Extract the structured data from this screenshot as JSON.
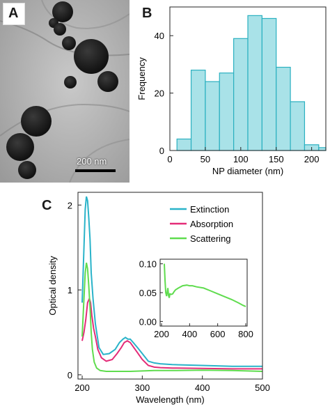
{
  "panels": {
    "a": {
      "letter": "A",
      "scale_bar_label": "200 nm"
    },
    "b": {
      "letter": "B"
    },
    "c": {
      "letter": "C"
    }
  },
  "chart_data": [
    {
      "id": "B",
      "type": "bar",
      "xlabel": "NP diameter (nm)",
      "ylabel": "Frequency",
      "xlim": [
        0,
        220
      ],
      "ylim": [
        0,
        50
      ],
      "xticks": [
        0,
        50,
        100,
        150,
        200
      ],
      "yticks": [
        0,
        20,
        40
      ],
      "bin_edges": [
        10,
        30,
        50,
        70,
        90,
        110,
        130,
        150,
        170,
        190,
        210,
        220
      ],
      "values": [
        4,
        28,
        24,
        27,
        39,
        47,
        46,
        29,
        17,
        2,
        1
      ],
      "color": "#a9e2e8",
      "edge_color": "#2ab0c0"
    },
    {
      "id": "C",
      "type": "line",
      "xlabel": "Wavelength (nm)",
      "ylabel": "Optical density",
      "xlim": [
        193,
        500
      ],
      "ylim": [
        -0.05,
        2.15
      ],
      "xticks": [
        200,
        300,
        400,
        500
      ],
      "yticks": [
        0,
        1,
        2
      ],
      "legend_position": "top-right",
      "series": [
        {
          "name": "Extinction",
          "color": "#29b3c9",
          "x": [
            200,
            203,
            205,
            207,
            209,
            211,
            213,
            215,
            218,
            222,
            228,
            235,
            245,
            255,
            262,
            268,
            272,
            276,
            280,
            285,
            292,
            300,
            310,
            320,
            330,
            350,
            400,
            450,
            500
          ],
          "y": [
            0.85,
            1.5,
            1.95,
            2.1,
            2.05,
            1.85,
            1.6,
            1.2,
            0.9,
            0.6,
            0.32,
            0.24,
            0.25,
            0.3,
            0.38,
            0.42,
            0.44,
            0.42,
            0.42,
            0.38,
            0.32,
            0.25,
            0.16,
            0.14,
            0.13,
            0.12,
            0.11,
            0.1,
            0.1
          ]
        },
        {
          "name": "Absorption",
          "color": "#e42c78",
          "x": [
            200,
            203,
            206,
            209,
            212,
            214,
            216,
            219,
            222,
            226,
            232,
            240,
            250,
            258,
            265,
            270,
            275,
            280,
            285,
            292,
            300,
            310,
            320,
            330,
            350,
            400,
            450,
            500
          ],
          "y": [
            0.4,
            0.5,
            0.65,
            0.85,
            0.9,
            0.85,
            0.7,
            0.55,
            0.45,
            0.3,
            0.2,
            0.16,
            0.18,
            0.25,
            0.32,
            0.38,
            0.4,
            0.38,
            0.33,
            0.26,
            0.18,
            0.11,
            0.09,
            0.085,
            0.08,
            0.075,
            0.07,
            0.07
          ]
        },
        {
          "name": "Scattering",
          "color": "#5fdc4e",
          "x": [
            200,
            203,
            205,
            207,
            209,
            211,
            213,
            215,
            217,
            220,
            224,
            230,
            240,
            260,
            280,
            300,
            320,
            350,
            400,
            450,
            500
          ],
          "y": [
            0.45,
            0.9,
            1.2,
            1.32,
            1.25,
            1.05,
            0.8,
            0.5,
            0.3,
            0.15,
            0.08,
            0.05,
            0.04,
            0.04,
            0.04,
            0.045,
            0.05,
            0.05,
            0.055,
            0.05,
            0.04
          ]
        }
      ],
      "inset": {
        "xlim": [
          190,
          810
        ],
        "ylim": [
          -0.008,
          0.108
        ],
        "xticks": [
          200,
          400,
          600,
          800
        ],
        "yticks": [
          0.0,
          0.05,
          0.1
        ],
        "ytick_labels": [
          "0.00",
          "0.05",
          "0.10"
        ],
        "series": [
          {
            "name": "Scattering",
            "color": "#5fdc4e",
            "x": [
              220,
              225,
              230,
              236,
              240,
              245,
              250,
              255,
              260,
              270,
              280,
              290,
              300,
              320,
              350,
              380,
              400,
              420,
              450,
              500,
              550,
              600,
              650,
              700,
              750,
              780,
              800
            ],
            "y": [
              0.1,
              0.07,
              0.05,
              0.044,
              0.05,
              0.058,
              0.045,
              0.041,
              0.048,
              0.047,
              0.048,
              0.052,
              0.055,
              0.058,
              0.062,
              0.063,
              0.062,
              0.062,
              0.06,
              0.058,
              0.053,
              0.048,
              0.043,
              0.038,
              0.032,
              0.028,
              0.026
            ]
          }
        ]
      }
    }
  ]
}
